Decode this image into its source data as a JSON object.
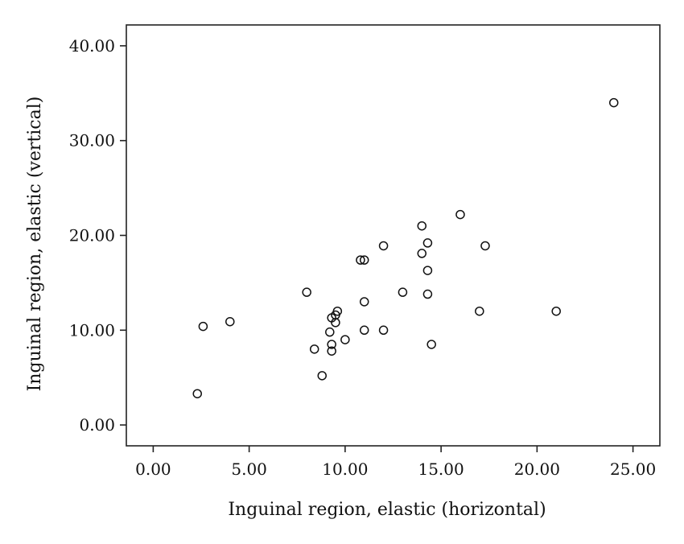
{
  "chart_data": {
    "type": "scatter",
    "title": "",
    "xlabel": "Inguinal region, elastic (horizontal)",
    "ylabel": "Inguinal region, elastic (vertical)",
    "xlim": [
      -1.4,
      26.4
    ],
    "ylim": [
      -2.2,
      42.2
    ],
    "xticks": [
      0,
      5,
      10,
      15,
      20,
      25
    ],
    "yticks": [
      0,
      10,
      20,
      30,
      40
    ],
    "xtick_labels": [
      "0.00",
      "5.00",
      "10.00",
      "15.00",
      "20.00",
      "25.00"
    ],
    "ytick_labels": [
      "0.00",
      "10.00",
      "20.00",
      "30.00",
      "40.00"
    ],
    "grid": false,
    "marker": "open-circle",
    "points": [
      {
        "x": 2.3,
        "y": 3.3
      },
      {
        "x": 2.6,
        "y": 10.4
      },
      {
        "x": 4.0,
        "y": 10.9
      },
      {
        "x": 8.0,
        "y": 14.0
      },
      {
        "x": 8.4,
        "y": 8.0
      },
      {
        "x": 8.8,
        "y": 5.2
      },
      {
        "x": 9.2,
        "y": 9.8
      },
      {
        "x": 9.3,
        "y": 11.3
      },
      {
        "x": 9.3,
        "y": 8.5
      },
      {
        "x": 9.3,
        "y": 7.8
      },
      {
        "x": 9.5,
        "y": 11.6
      },
      {
        "x": 9.6,
        "y": 12.0
      },
      {
        "x": 9.5,
        "y": 10.8
      },
      {
        "x": 10.0,
        "y": 9.0
      },
      {
        "x": 10.8,
        "y": 17.4
      },
      {
        "x": 11.0,
        "y": 17.4
      },
      {
        "x": 11.0,
        "y": 13.0
      },
      {
        "x": 11.0,
        "y": 10.0
      },
      {
        "x": 12.0,
        "y": 18.9
      },
      {
        "x": 12.0,
        "y": 10.0
      },
      {
        "x": 13.0,
        "y": 14.0
      },
      {
        "x": 14.0,
        "y": 21.0
      },
      {
        "x": 14.0,
        "y": 18.1
      },
      {
        "x": 14.3,
        "y": 19.2
      },
      {
        "x": 14.3,
        "y": 16.3
      },
      {
        "x": 14.3,
        "y": 13.8
      },
      {
        "x": 14.5,
        "y": 8.5
      },
      {
        "x": 16.0,
        "y": 22.2
      },
      {
        "x": 17.0,
        "y": 12.0
      },
      {
        "x": 17.3,
        "y": 18.9
      },
      {
        "x": 21.0,
        "y": 12.0
      },
      {
        "x": 24.0,
        "y": 34.0
      }
    ]
  }
}
